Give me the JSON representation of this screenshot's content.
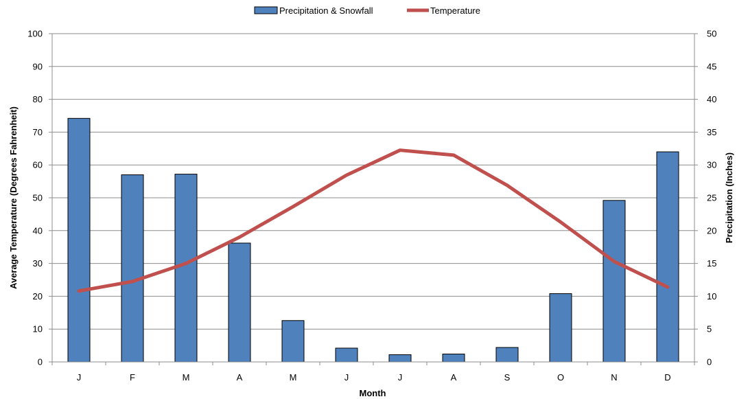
{
  "chart_data": {
    "type": "bar",
    "categories": [
      "J",
      "F",
      "M",
      "A",
      "M",
      "J",
      "J",
      "A",
      "S",
      "O",
      "N",
      "D"
    ],
    "series": [
      {
        "name": "Precipitation & Snowfall",
        "type": "bar",
        "axis": "right",
        "color": "#4F81BD",
        "values": [
          37.1,
          28.5,
          28.6,
          18.1,
          6.3,
          2.1,
          1.1,
          1.2,
          2.2,
          10.4,
          24.6,
          32.0
        ]
      },
      {
        "name": "Temperature",
        "type": "line",
        "axis": "left",
        "color": "#C0504D",
        "values": [
          21.6,
          24.5,
          30.0,
          38.0,
          47.3,
          56.9,
          64.5,
          63.0,
          53.8,
          42.6,
          30.6,
          22.8
        ]
      }
    ],
    "xlabel": "Month",
    "ylabel_left": "Average Temperature (Degrees Fahrenheit)",
    "ylabel_right": "Precipitation (Inches)",
    "ylim_left": [
      0,
      100
    ],
    "ylim_right": [
      0,
      50
    ],
    "yticks_left": [
      "0",
      "10",
      "20",
      "30",
      "40",
      "50",
      "60",
      "70",
      "80",
      "90",
      "100"
    ],
    "yticks_right": [
      "0",
      "5",
      "10",
      "15",
      "20",
      "25",
      "30",
      "35",
      "40",
      "45",
      "50"
    ],
    "grid": true,
    "legend_position": "top-center"
  }
}
